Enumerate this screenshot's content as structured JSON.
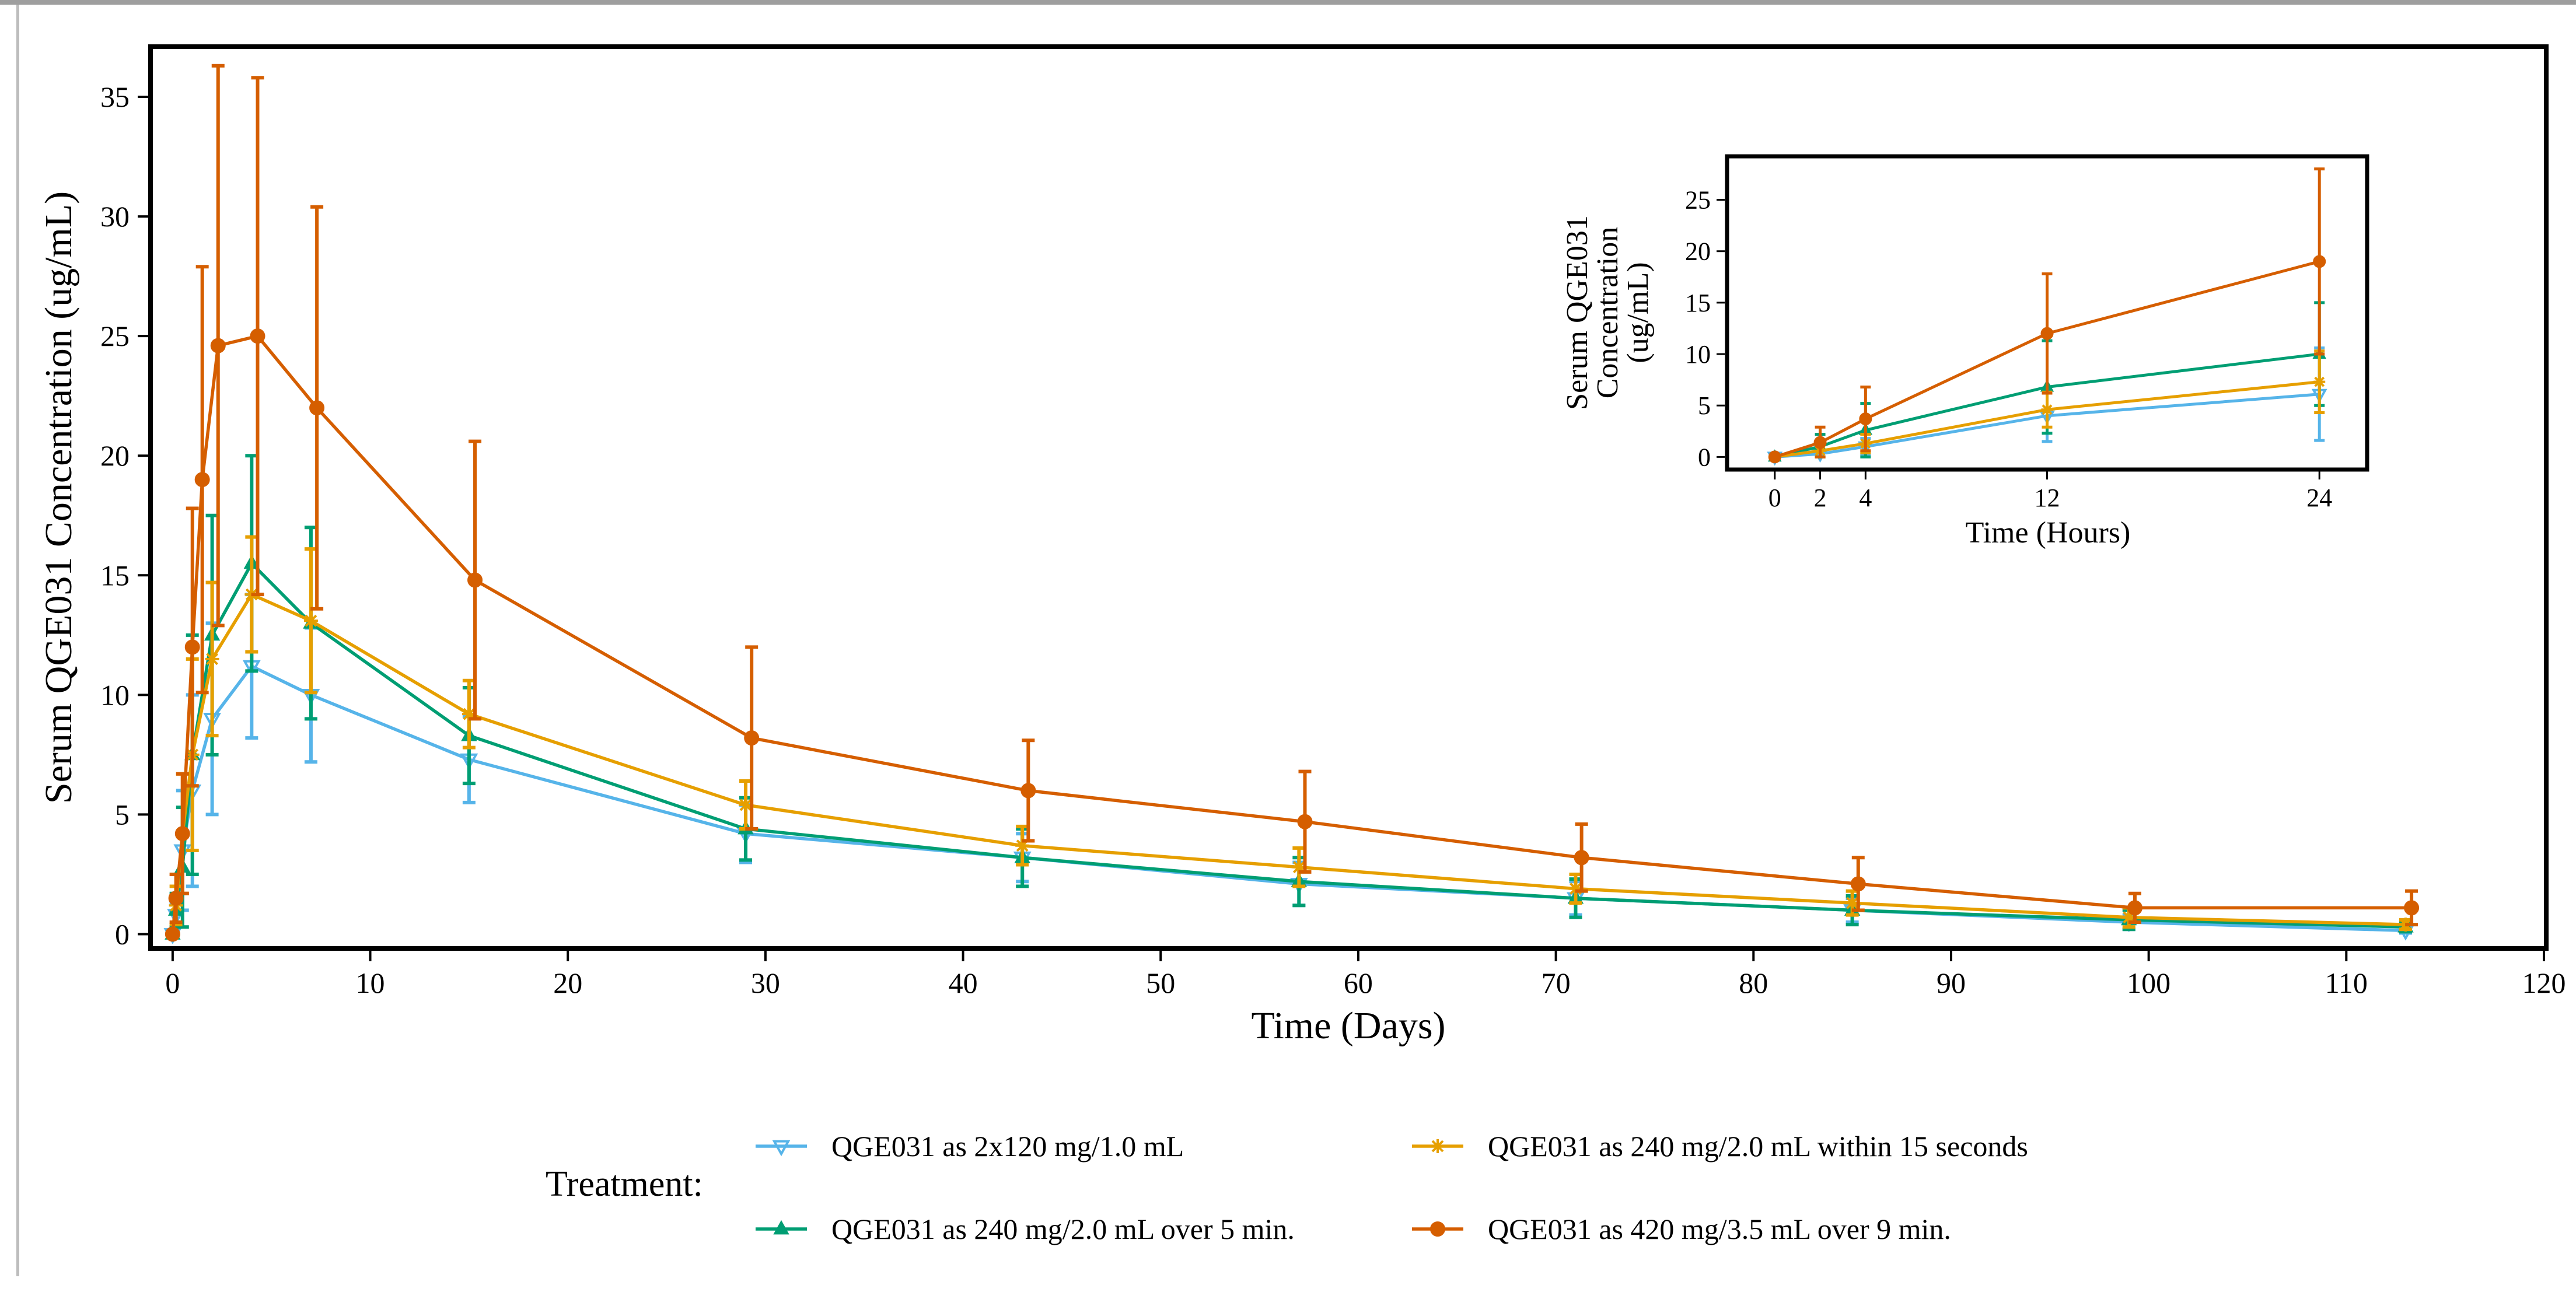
{
  "chart_data": {
    "type": "line",
    "xlabel": "Time (Days)",
    "ylabel": "Serum QGE031 Concentration (ug/mL)",
    "xlim": [
      -1,
      120
    ],
    "ylim": [
      -0.5,
      37
    ],
    "xticks": [
      0,
      10,
      20,
      30,
      40,
      50,
      60,
      70,
      80,
      90,
      100,
      110,
      120
    ],
    "yticks": [
      0,
      5,
      10,
      15,
      20,
      25,
      30,
      35
    ],
    "legend_title": "Treatment:",
    "legend_position": "bottom",
    "series": [
      {
        "name": "QGE031 as 2x120 mg/1.0 mL",
        "color": "#56B4E9",
        "marker": "triangle-down-open",
        "x": [
          0,
          0.17,
          0.5,
          1,
          2,
          4,
          7,
          15,
          29,
          43,
          57,
          71,
          85,
          99,
          113
        ],
        "y": [
          0,
          0.8,
          3.5,
          6,
          9,
          11.2,
          10,
          7.3,
          4.2,
          3.2,
          2.1,
          1.5,
          1.0,
          0.5,
          0.15
        ],
        "err": [
          0,
          0.5,
          2.5,
          4,
          4,
          3,
          2.8,
          1.8,
          1.2,
          1.0,
          0.9,
          0.7,
          0.5,
          0.3,
          0.1
        ]
      },
      {
        "name": "QGE031 as 240 mg/2.0 mL over 5 min.",
        "color": "#009E73",
        "marker": "triangle-up",
        "x": [
          0,
          0.17,
          0.5,
          1,
          2,
          4,
          7,
          15,
          29,
          43,
          57,
          71,
          85,
          99,
          113
        ],
        "y": [
          0,
          1.0,
          2.8,
          7.5,
          12.5,
          15.5,
          13,
          8.3,
          4.4,
          3.2,
          2.2,
          1.5,
          1.0,
          0.6,
          0.3
        ],
        "err": [
          0,
          0.7,
          2.5,
          5,
          5,
          4.5,
          4,
          2,
          1.3,
          1.2,
          1.0,
          0.8,
          0.6,
          0.4,
          0.2
        ]
      },
      {
        "name": "QGE031 as 240 mg/2.0 mL within 15 seconds",
        "color": "#E69F00",
        "marker": "asterisk",
        "x": [
          0,
          0.17,
          0.5,
          1,
          2,
          4,
          7,
          15,
          29,
          43,
          57,
          71,
          85,
          99,
          113
        ],
        "y": [
          0,
          1.2,
          4.2,
          7.5,
          11.5,
          14.2,
          13.1,
          9.2,
          5.4,
          3.7,
          2.8,
          1.9,
          1.3,
          0.7,
          0.4
        ],
        "err": [
          0,
          0.8,
          2.5,
          4,
          3.2,
          2.4,
          3,
          1.4,
          1.0,
          0.8,
          0.8,
          0.6,
          0.5,
          0.4,
          0.2
        ]
      },
      {
        "name": "QGE031 as 420 mg/3.5 mL over 9 min.",
        "color": "#D55E00",
        "marker": "circle",
        "x": [
          0,
          0.17,
          0.5,
          1,
          1.5,
          2.3,
          4.3,
          7.3,
          15.3,
          29.3,
          43.3,
          57.3,
          71.3,
          85.3,
          99.3,
          113.3
        ],
        "y": [
          0,
          1.5,
          4.2,
          12,
          19,
          24.6,
          25,
          22,
          14.8,
          8.2,
          6,
          4.7,
          3.2,
          2.1,
          1.1,
          1.1
        ],
        "err": [
          0,
          1.0,
          2.5,
          5.8,
          8.9,
          11.7,
          10.8,
          8.4,
          5.8,
          3.8,
          2.1,
          2.1,
          1.4,
          1.1,
          0.6,
          0.7
        ]
      }
    ],
    "inset": {
      "xlabel": "Time (Hours)",
      "ylabel_lines": [
        "Serum QGE031",
        "Concentration",
        "(ug/mL)"
      ],
      "xlim": [
        -2,
        26
      ],
      "ylim": [
        -1,
        29
      ],
      "xticks": [
        0,
        2,
        4,
        12,
        24
      ],
      "yticks": [
        0,
        5,
        10,
        15,
        20,
        25
      ],
      "series": [
        {
          "x": [
            0,
            2,
            4,
            12,
            24
          ],
          "y": [
            0,
            0.3,
            1.0,
            4.0,
            6.1
          ],
          "err": [
            0,
            0.4,
            0.8,
            2.5,
            4.5
          ]
        },
        {
          "x": [
            0,
            2,
            4,
            12,
            24
          ],
          "y": [
            0,
            1.0,
            2.6,
            6.8,
            10.0
          ],
          "err": [
            0,
            1.2,
            2.6,
            4.5,
            5.0
          ]
        },
        {
          "x": [
            0,
            2,
            4,
            12,
            24
          ],
          "y": [
            0,
            0.6,
            1.3,
            4.6,
            7.3
          ],
          "err": [
            0,
            0.6,
            0.9,
            1.7,
            3.0
          ]
        },
        {
          "x": [
            0,
            2,
            4,
            12,
            24
          ],
          "y": [
            0,
            1.4,
            3.7,
            12.0,
            19.0
          ],
          "err": [
            0,
            1.5,
            3.1,
            5.8,
            9.0
          ]
        }
      ]
    }
  }
}
